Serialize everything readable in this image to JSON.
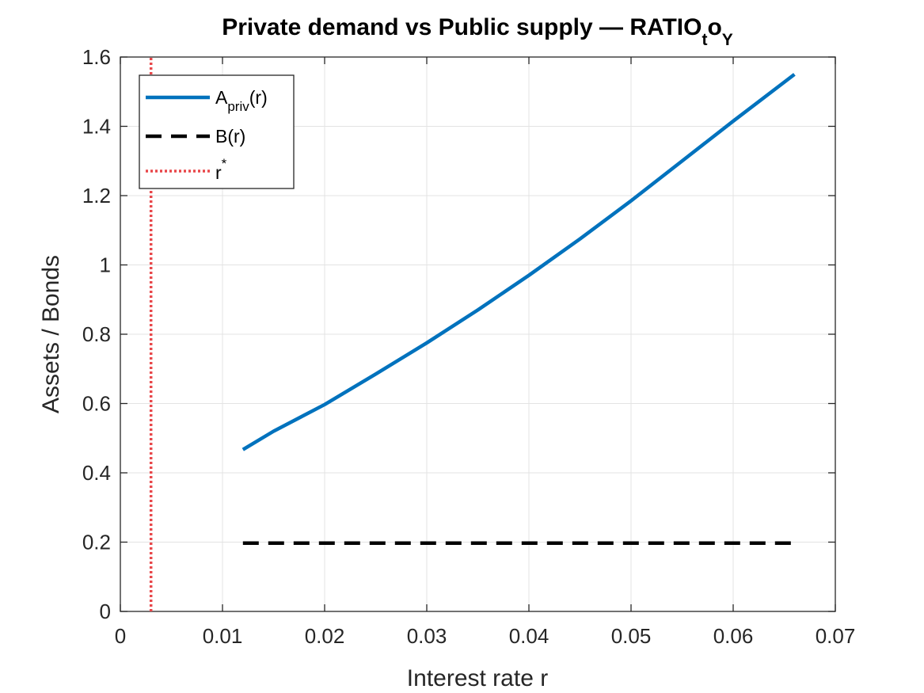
{
  "chart_data": {
    "type": "line",
    "title": {
      "main": "Private demand vs Public supply — RATIO",
      "sub1": "t",
      "mid": "o",
      "sub2": "Y"
    },
    "xlabel": "Interest rate r",
    "ylabel": "Assets / Bonds",
    "xlim": [
      0,
      0.07
    ],
    "ylim": [
      0,
      1.6
    ],
    "xticks": [
      0,
      0.01,
      0.02,
      0.03,
      0.04,
      0.05,
      0.06,
      0.07
    ],
    "xtick_labels": [
      "0",
      "0.01",
      "0.02",
      "0.03",
      "0.04",
      "0.05",
      "0.06",
      "0.07"
    ],
    "yticks": [
      0,
      0.2,
      0.4,
      0.6,
      0.8,
      1.0,
      1.2,
      1.4,
      1.6
    ],
    "ytick_labels": [
      "0",
      "0.2",
      "0.4",
      "0.6",
      "0.8",
      "1",
      "1.2",
      "1.4",
      "1.6"
    ],
    "grid": true,
    "legend_position": "top-left",
    "series": [
      {
        "name": "A_priv(r)",
        "label_base": "A",
        "label_sub": "priv",
        "label_tail": "(r)",
        "style": "solid",
        "color": "#0072BD",
        "x": [
          0.012,
          0.015,
          0.02,
          0.025,
          0.03,
          0.035,
          0.04,
          0.045,
          0.05,
          0.055,
          0.06,
          0.066
        ],
        "y": [
          0.467,
          0.52,
          0.597,
          0.685,
          0.775,
          0.87,
          0.97,
          1.075,
          1.185,
          1.3,
          1.415,
          1.55
        ]
      },
      {
        "name": "B(r)",
        "label_base": "B(r)",
        "label_sub": "",
        "label_tail": "",
        "style": "dashed",
        "color": "#000000",
        "x": [
          0.012,
          0.066
        ],
        "y": [
          0.197,
          0.197
        ]
      },
      {
        "name": "r*",
        "label_base": "r",
        "label_sup": "*",
        "style": "dotted",
        "color": "#E8474A",
        "x": [
          0.003,
          0.003
        ],
        "y": [
          0,
          1.6
        ]
      }
    ]
  }
}
